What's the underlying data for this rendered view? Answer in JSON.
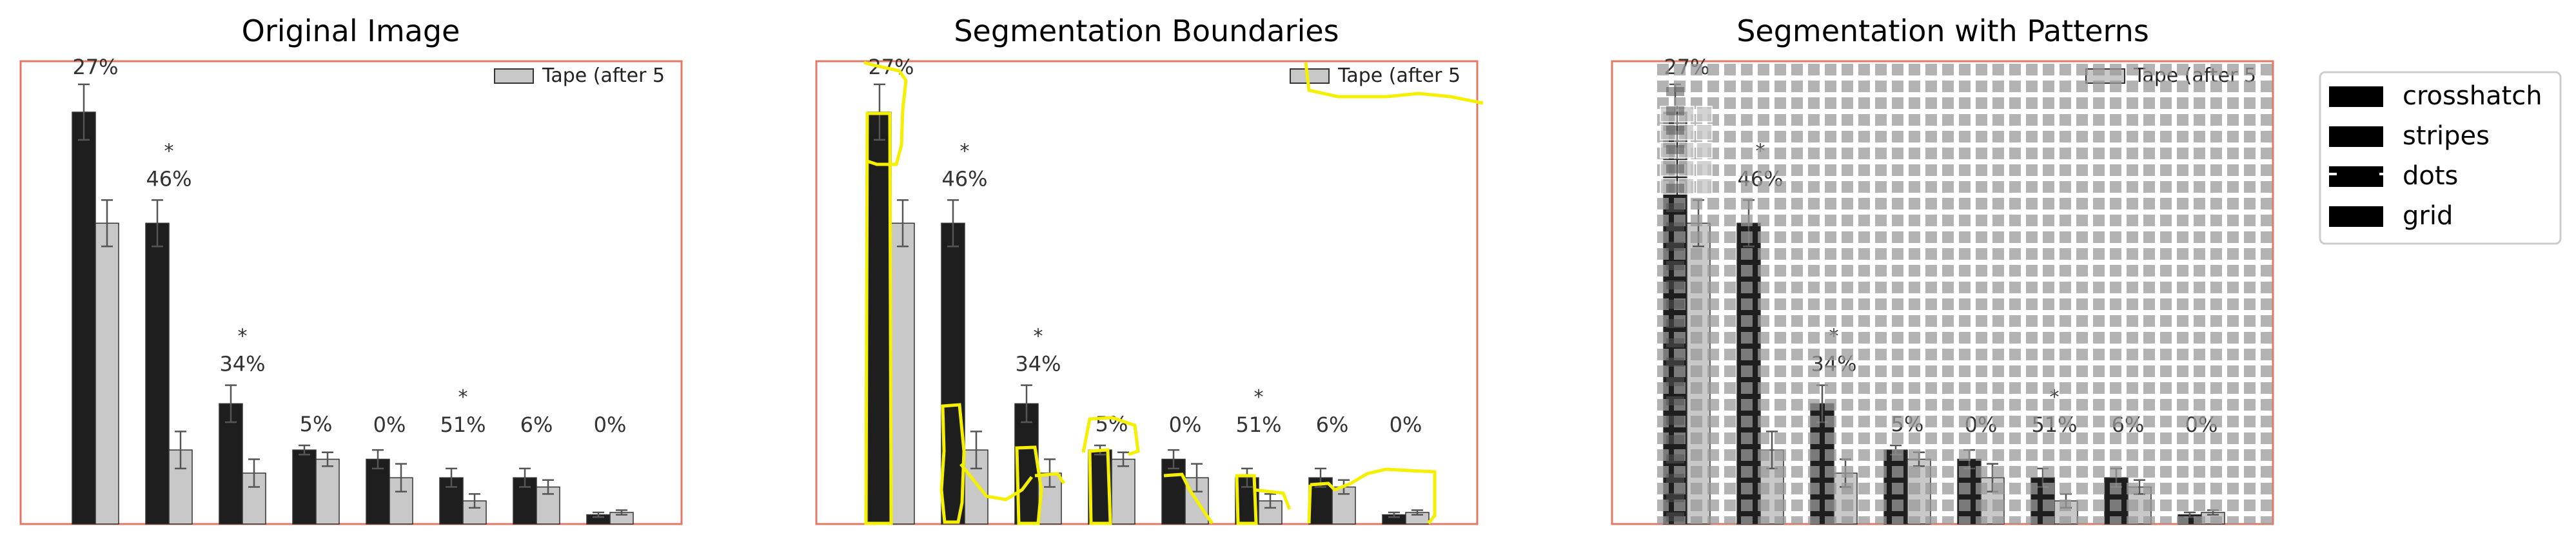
{
  "panels": [
    {
      "title": "Original Image"
    },
    {
      "title": "Segmentation Boundaries"
    },
    {
      "title": "Segmentation with Patterns"
    }
  ],
  "embedded_legend_label": "Tape (after 5",
  "pattern_legend": [
    {
      "label": "crosshatch"
    },
    {
      "label": "stripes"
    },
    {
      "label": "dots"
    },
    {
      "label": "grid"
    }
  ],
  "colors": {
    "frame": "#e07a66",
    "dark_bar": "#1e1e1e",
    "light_bar": "#c8c8c8",
    "boundary": "#f5f000",
    "overlay": "#9a9a9a",
    "legend_swatch": "#7d7d7d"
  },
  "chart_data": {
    "type": "bar",
    "title": "",
    "ylim": [
      0,
      100
    ],
    "grid": false,
    "legend_placement": "top-right",
    "series": [
      {
        "values": [
          89,
          65,
          26,
          16,
          14,
          10,
          10,
          2
        ],
        "errors": [
          6,
          5,
          4,
          1,
          2,
          2,
          2,
          0.5
        ]
      },
      {
        "name": "Tape (after 5",
        "values": [
          65,
          16,
          11,
          14,
          10,
          5,
          8,
          2.5
        ],
        "errors": [
          5,
          4,
          3,
          1.5,
          3,
          1.5,
          1.5,
          0.5
        ]
      }
    ],
    "annotations": [
      {
        "group": 0,
        "text": "27%",
        "star": false
      },
      {
        "group": 1,
        "text": "46%",
        "star": true
      },
      {
        "group": 2,
        "text": "34%",
        "star": true
      },
      {
        "group": 3,
        "text": "5%",
        "star": false
      },
      {
        "group": 4,
        "text": "0%",
        "star": false
      },
      {
        "group": 5,
        "text": "51%",
        "star": true
      },
      {
        "group": 6,
        "text": "6%",
        "star": false
      },
      {
        "group": 7,
        "text": "0%",
        "star": false
      }
    ]
  }
}
